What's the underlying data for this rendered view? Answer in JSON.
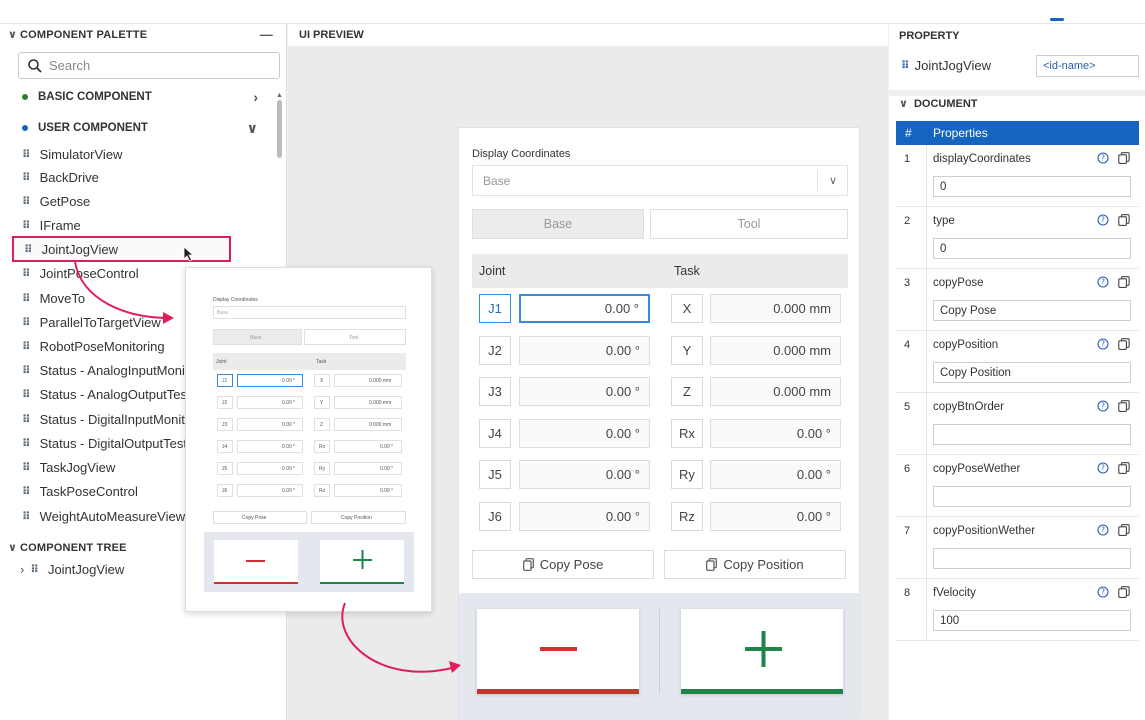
{
  "palette": {
    "title": "COMPONENT PALETTE",
    "search_placeholder": "Search",
    "basic_group": "BASIC COMPONENT",
    "user_group": "USER COMPONENT",
    "items": [
      "SimulatorView",
      "BackDrive",
      "GetPose",
      "IFrame",
      "JointJogView",
      "JointPoseControl",
      "MoveTo",
      "ParallelToTargetView",
      "RobotPoseMonitoring",
      "Status - AnalogInputMoni",
      "Status - AnalogOutputTes",
      "Status - DigitalInputMonit",
      "Status - DigitalOutputTest",
      "TaskJogView",
      "TaskPoseControl",
      "WeightAutoMeasureView"
    ],
    "highlighted_item": "JointJogView"
  },
  "tree": {
    "title": "COMPONENT TREE",
    "root": "JointJogView"
  },
  "preview": {
    "title": "UI PREVIEW",
    "display_label": "Display Coordinates",
    "display_value": "Base",
    "toggle_base": "Base",
    "toggle_tool": "Tool",
    "col_joint": "Joint",
    "col_task": "Task",
    "joints": [
      {
        "label": "J1",
        "value": "0.00 °"
      },
      {
        "label": "J2",
        "value": "0.00 °"
      },
      {
        "label": "J3",
        "value": "0.00 °"
      },
      {
        "label": "J4",
        "value": "0.00 °"
      },
      {
        "label": "J5",
        "value": "0.00 °"
      },
      {
        "label": "J6",
        "value": "0.00 °"
      }
    ],
    "tasks": [
      {
        "label": "X",
        "value": "0.000 mm"
      },
      {
        "label": "Y",
        "value": "0.000 mm"
      },
      {
        "label": "Z",
        "value": "0.000 mm"
      },
      {
        "label": "Rx",
        "value": "0.00 °"
      },
      {
        "label": "Ry",
        "value": "0.00 °"
      },
      {
        "label": "Rz",
        "value": "0.00 °"
      }
    ],
    "copy_pose": "Copy Pose",
    "copy_position": "Copy Position",
    "minus_color": "#d32f2f",
    "plus_color": "#1e8449"
  },
  "property": {
    "title": "PROPERTY",
    "component_name": "JointJogView",
    "id_placeholder": "<id-name>",
    "document_title": "DOCUMENT",
    "col_num": "#",
    "col_props": "Properties",
    "rows": [
      {
        "num": "1",
        "name": "displayCoordinates",
        "value": "0"
      },
      {
        "num": "2",
        "name": "type",
        "value": "0"
      },
      {
        "num": "3",
        "name": "copyPose",
        "value": "Copy Pose"
      },
      {
        "num": "4",
        "name": "copyPosition",
        "value": "Copy Position"
      },
      {
        "num": "5",
        "name": "copyBtnOrder",
        "value": ""
      },
      {
        "num": "6",
        "name": "copyPoseWether",
        "value": ""
      },
      {
        "num": "7",
        "name": "copyPositionWether",
        "value": ""
      },
      {
        "num": "8",
        "name": "fVelocity",
        "value": "100"
      }
    ]
  },
  "accent": "#1565c0",
  "highlight": "#e01e5a"
}
